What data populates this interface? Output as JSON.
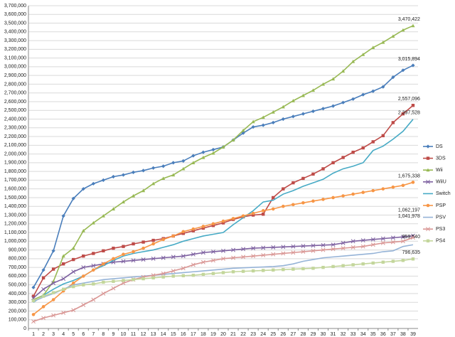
{
  "chart_data": {
    "type": "line",
    "categories": [
      1,
      2,
      3,
      4,
      5,
      6,
      7,
      8,
      9,
      10,
      11,
      12,
      13,
      14,
      15,
      16,
      17,
      18,
      19,
      20,
      21,
      22,
      23,
      24,
      25,
      26,
      27,
      28,
      29,
      30,
      31,
      32,
      33,
      34,
      35,
      36,
      37,
      38,
      39
    ],
    "ylim": [
      0,
      3700000
    ],
    "yticks": [
      {
        "value": 0,
        "label": "0"
      },
      {
        "value": 100000,
        "label": "100,000"
      },
      {
        "value": 200000,
        "label": "200,000"
      },
      {
        "value": 300000,
        "label": "300,000"
      },
      {
        "value": 400000,
        "label": "400,000"
      },
      {
        "value": 500000,
        "label": "500,000"
      },
      {
        "value": 600000,
        "label": "600,000"
      },
      {
        "value": 700000,
        "label": "700,000"
      },
      {
        "value": 800000,
        "label": "800,000"
      },
      {
        "value": 900000,
        "label": "900,000"
      },
      {
        "value": 1000000,
        "label": "1,000,000"
      },
      {
        "value": 1100000,
        "label": "1,100,000"
      },
      {
        "value": 1200000,
        "label": "1,200,000"
      },
      {
        "value": 1300000,
        "label": "1,300,000"
      },
      {
        "value": 1400000,
        "label": "1,400,000"
      },
      {
        "value": 1500000,
        "label": "1,500,000"
      },
      {
        "value": 1600000,
        "label": "1,600,000"
      },
      {
        "value": 1700000,
        "label": "1,700,000"
      },
      {
        "value": 1800000,
        "label": "1,800,000"
      },
      {
        "value": 1900000,
        "label": "1,900,000"
      },
      {
        "value": 2000000,
        "label": "2,000,000"
      },
      {
        "value": 2100000,
        "label": "2,100,000"
      },
      {
        "value": 2200000,
        "label": "2,200,000"
      },
      {
        "value": 2300000,
        "label": "2,300,000"
      },
      {
        "value": 2400000,
        "label": "2,400,000"
      },
      {
        "value": 2500000,
        "label": "2,500,000"
      },
      {
        "value": 2600000,
        "label": "2,600,000"
      },
      {
        "value": 2700000,
        "label": "2,700,000"
      },
      {
        "value": 2800000,
        "label": "2,800,000"
      },
      {
        "value": 2900000,
        "label": "2,900,000"
      },
      {
        "value": 3000000,
        "label": "3,000,000"
      },
      {
        "value": 3100000,
        "label": "3,100,000"
      },
      {
        "value": 3200000,
        "label": "3,200,000"
      },
      {
        "value": 3300000,
        "label": "3,300,000"
      },
      {
        "value": 3400000,
        "label": "3,400,000"
      },
      {
        "value": 3500000,
        "label": "3,500,000"
      },
      {
        "value": 3600000,
        "label": "3,600,000"
      },
      {
        "value": 3700000,
        "label": "3,700,000"
      }
    ],
    "grid": true,
    "legend": "right",
    "series": [
      {
        "name": "DS",
        "color": "#4a7ebb",
        "marker": "diamond",
        "values": [
          470000,
          670000,
          890000,
          1290000,
          1490000,
          1600000,
          1660000,
          1700000,
          1740000,
          1760000,
          1790000,
          1810000,
          1840000,
          1860000,
          1900000,
          1920000,
          1980000,
          2020000,
          2050000,
          2080000,
          2160000,
          2240000,
          2310000,
          2330000,
          2360000,
          2400000,
          2430000,
          2460000,
          2490000,
          2520000,
          2550000,
          2590000,
          2630000,
          2680000,
          2720000,
          2770000,
          2880000,
          2960000,
          3015894
        ],
        "value_labels": [
          null,
          null,
          null,
          null,
          null,
          null,
          null,
          null,
          null,
          null,
          null,
          null,
          null,
          null,
          null,
          null,
          null,
          null,
          null,
          null,
          null,
          null,
          null,
          null,
          null,
          null,
          null,
          null,
          null,
          null,
          null,
          null,
          null,
          null,
          null,
          null,
          null,
          null,
          "3,015,894"
        ]
      },
      {
        "name": "3DS",
        "color": "#be4b48",
        "marker": "square",
        "values": [
          370000,
          580000,
          680000,
          740000,
          790000,
          830000,
          860000,
          890000,
          920000,
          940000,
          970000,
          990000,
          1010000,
          1030000,
          1060000,
          1090000,
          1120000,
          1150000,
          1180000,
          1210000,
          1250000,
          1280000,
          1300000,
          1310000,
          1500000,
          1600000,
          1670000,
          1720000,
          1770000,
          1830000,
          1900000,
          1960000,
          2020000,
          2070000,
          2140000,
          2210000,
          2360000,
          2460000,
          2557096
        ],
        "value_labels": [
          null,
          null,
          null,
          null,
          null,
          null,
          null,
          null,
          null,
          null,
          null,
          null,
          null,
          null,
          null,
          null,
          null,
          null,
          null,
          null,
          null,
          null,
          null,
          null,
          null,
          null,
          null,
          null,
          null,
          null,
          null,
          null,
          null,
          null,
          null,
          null,
          null,
          null,
          "2,557,096"
        ]
      },
      {
        "name": "Wii",
        "color": "#98b954",
        "marker": "triangle",
        "values": [
          330000,
          380000,
          540000,
          830000,
          920000,
          1120000,
          1210000,
          1290000,
          1370000,
          1450000,
          1520000,
          1580000,
          1660000,
          1720000,
          1760000,
          1830000,
          1900000,
          1960000,
          2010000,
          2080000,
          2160000,
          2270000,
          2370000,
          2420000,
          2480000,
          2540000,
          2610000,
          2670000,
          2730000,
          2800000,
          2860000,
          2950000,
          3060000,
          3140000,
          3220000,
          3280000,
          3350000,
          3420000,
          3470422
        ],
        "value_labels": [
          null,
          null,
          null,
          null,
          null,
          null,
          null,
          null,
          null,
          null,
          null,
          null,
          null,
          null,
          null,
          null,
          null,
          null,
          null,
          null,
          null,
          null,
          null,
          null,
          null,
          null,
          null,
          null,
          null,
          null,
          null,
          null,
          null,
          null,
          null,
          null,
          null,
          null,
          "3,470,422"
        ]
      },
      {
        "name": "WiiU",
        "color": "#7d60a0",
        "marker": "cross",
        "values": [
          350000,
          450000,
          520000,
          570000,
          650000,
          700000,
          720000,
          740000,
          760000,
          770000,
          780000,
          790000,
          800000,
          810000,
          820000,
          830000,
          850000,
          870000,
          880000,
          890000,
          900000,
          910000,
          920000,
          925000,
          930000,
          935000,
          940000,
          945000,
          950000,
          955000,
          960000,
          980000,
          1000000,
          1010000,
          1020000,
          1030000,
          1040000,
          1050000,
          1062197
        ],
        "value_labels": [
          null,
          null,
          null,
          null,
          null,
          null,
          null,
          null,
          null,
          null,
          null,
          null,
          null,
          null,
          null,
          null,
          null,
          null,
          null,
          null,
          null,
          null,
          null,
          null,
          null,
          null,
          null,
          null,
          null,
          null,
          null,
          null,
          null,
          null,
          null,
          null,
          null,
          null,
          "1,062,197"
        ]
      },
      {
        "name": "Switch",
        "color": "#46aac5",
        "marker": "none",
        "values": [
          300000,
          380000,
          450000,
          510000,
          550000,
          600000,
          670000,
          720000,
          780000,
          830000,
          860000,
          880000,
          900000,
          930000,
          960000,
          1000000,
          1030000,
          1060000,
          1080000,
          1100000,
          1190000,
          1270000,
          1350000,
          1450000,
          1470000,
          1540000,
          1580000,
          1630000,
          1670000,
          1710000,
          1780000,
          1830000,
          1860000,
          1900000,
          2040000,
          2090000,
          2170000,
          2260000,
          2397528
        ],
        "value_labels": [
          null,
          null,
          null,
          null,
          null,
          null,
          null,
          null,
          null,
          null,
          null,
          null,
          null,
          null,
          null,
          null,
          null,
          null,
          null,
          null,
          null,
          null,
          null,
          null,
          null,
          null,
          null,
          null,
          null,
          null,
          null,
          null,
          null,
          null,
          null,
          null,
          null,
          null,
          "2,397,528"
        ]
      },
      {
        "name": "PSP",
        "color": "#f79646",
        "marker": "circle",
        "values": [
          160000,
          250000,
          330000,
          430000,
          520000,
          600000,
          670000,
          740000,
          800000,
          850000,
          880000,
          920000,
          970000,
          1020000,
          1060000,
          1110000,
          1140000,
          1170000,
          1200000,
          1230000,
          1260000,
          1290000,
          1320000,
          1350000,
          1370000,
          1400000,
          1420000,
          1440000,
          1460000,
          1480000,
          1500000,
          1520000,
          1540000,
          1560000,
          1580000,
          1600000,
          1620000,
          1640000,
          1675338
        ],
        "value_labels": [
          null,
          null,
          null,
          null,
          null,
          null,
          null,
          null,
          null,
          null,
          null,
          null,
          null,
          null,
          null,
          null,
          null,
          null,
          null,
          null,
          null,
          null,
          null,
          null,
          null,
          null,
          null,
          null,
          null,
          null,
          null,
          null,
          null,
          null,
          null,
          null,
          null,
          null,
          "1,675,338"
        ]
      },
      {
        "name": "PSV",
        "color": "#95b3d7",
        "marker": "none",
        "values": [
          310000,
          360000,
          400000,
          450000,
          500000,
          520000,
          540000,
          560000,
          570000,
          580000,
          590000,
          600000,
          610000,
          620000,
          630000,
          640000,
          650000,
          660000,
          670000,
          680000,
          690000,
          695000,
          700000,
          705000,
          710000,
          720000,
          740000,
          770000,
          790000,
          810000,
          820000,
          830000,
          840000,
          850000,
          860000,
          880000,
          890000,
          940000,
          959540
        ],
        "value_labels": [
          null,
          null,
          null,
          null,
          null,
          null,
          null,
          null,
          null,
          null,
          null,
          null,
          null,
          null,
          null,
          null,
          null,
          null,
          null,
          null,
          null,
          null,
          null,
          null,
          null,
          null,
          null,
          null,
          null,
          null,
          null,
          null,
          null,
          null,
          null,
          null,
          null,
          null,
          "959,540"
        ]
      },
      {
        "name": "PS3",
        "color": "#d99694",
        "marker": "cross",
        "values": [
          80000,
          120000,
          150000,
          180000,
          210000,
          270000,
          330000,
          400000,
          460000,
          520000,
          560000,
          590000,
          610000,
          630000,
          660000,
          690000,
          730000,
          760000,
          780000,
          800000,
          810000,
          820000,
          830000,
          840000,
          850000,
          860000,
          870000,
          880000,
          890000,
          900000,
          910000,
          920000,
          930000,
          940000,
          960000,
          980000,
          990000,
          1000000,
          1041978
        ],
        "value_labels": [
          null,
          null,
          null,
          null,
          null,
          null,
          null,
          null,
          null,
          null,
          null,
          null,
          null,
          null,
          null,
          null,
          null,
          null,
          null,
          null,
          null,
          null,
          null,
          null,
          null,
          null,
          null,
          null,
          null,
          null,
          null,
          null,
          null,
          null,
          null,
          null,
          null,
          null,
          "1,041,978"
        ]
      },
      {
        "name": "PS4",
        "color": "#c3d69b",
        "marker": "square",
        "values": [
          320000,
          370000,
          410000,
          450000,
          480000,
          500000,
          510000,
          530000,
          540000,
          550000,
          560000,
          570000,
          580000,
          590000,
          600000,
          605000,
          610000,
          620000,
          630000,
          640000,
          650000,
          655000,
          660000,
          665000,
          670000,
          675000,
          680000,
          685000,
          690000,
          700000,
          710000,
          720000,
          730000,
          740000,
          750000,
          760000,
          770000,
          780000,
          796635
        ],
        "value_labels": [
          null,
          null,
          null,
          null,
          null,
          null,
          null,
          null,
          null,
          null,
          null,
          null,
          null,
          null,
          null,
          null,
          null,
          null,
          null,
          null,
          null,
          null,
          null,
          null,
          null,
          null,
          null,
          null,
          null,
          null,
          null,
          null,
          null,
          null,
          null,
          null,
          null,
          null,
          "796,635"
        ]
      }
    ]
  }
}
